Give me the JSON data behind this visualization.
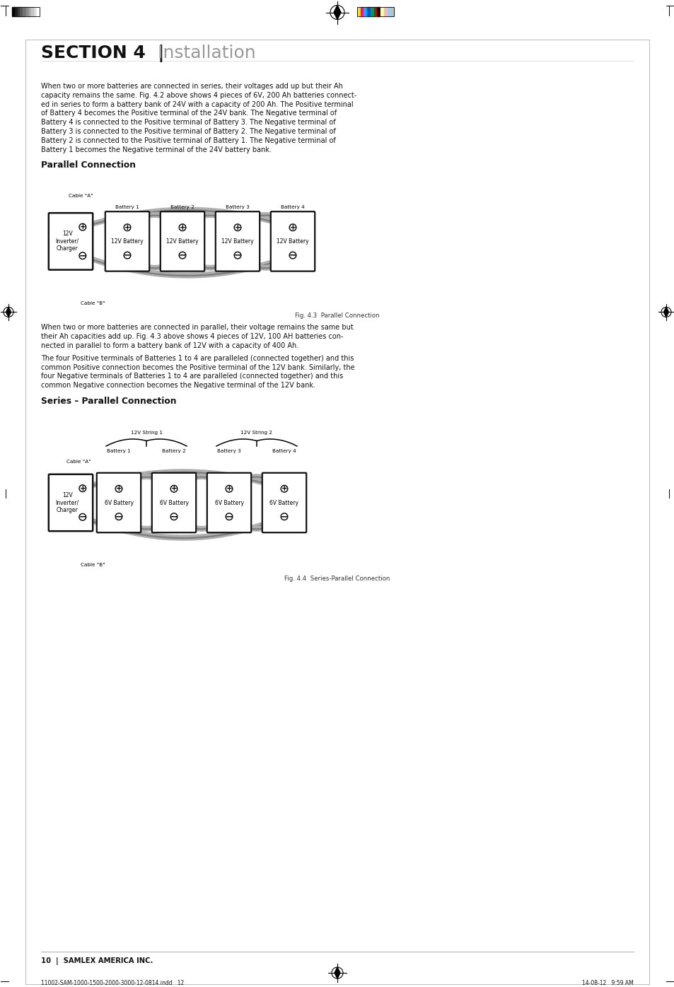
{
  "bg_color": "#ffffff",
  "page_width": 9.54,
  "page_height": 13.96,
  "header_bar_colors_gray": [
    "#000000",
    "#1c1c1c",
    "#383838",
    "#555555",
    "#717171",
    "#8d8d8d",
    "#aaaaaa",
    "#c6c6c6",
    "#e2e2e2",
    "#ffffff"
  ],
  "header_bar_colors_cmyk": [
    "#ffe000",
    "#ff00c8",
    "#00b4ff",
    "#0050c8",
    "#00a040",
    "#e00000",
    "#000000",
    "#ffffa0",
    "#ffb0d8",
    "#80d8ff",
    "#c0c0c0"
  ],
  "section_title_bold": "SECTION 4  |",
  "section_title_light": " Installation",
  "body_text_1": "When two or more batteries are connected in series, their voltages add up but their Ah\ncapacity remains the same. Fig. 4.2 above shows 4 pieces of 6V, 200 Ah batteries connect-\ned in series to form a battery bank of 24V with a capacity of 200 Ah. The Positive terminal\nof Battery 4 becomes the Positive terminal of the 24V bank. The Negative terminal of\nBattery 4 is connected to the Positive terminal of Battery 3. The Negative terminal of\nBattery 3 is connected to the Positive terminal of Battery 2. The Negative terminal of\nBattery 2 is connected to the Positive terminal of Battery 1. The Negative terminal of\nBattery 1 becomes the Negative terminal of the 24V battery bank.",
  "parallel_heading": "Parallel Connection",
  "fig43_caption": "Fig. 4.3  Parallel Connection",
  "body_text_2": "When two or more batteries are connected in parallel, their voltage remains the same but\ntheir Ah capacities add up. Fig. 4.3 above shows 4 pieces of 12V, 100 AH batteries con-\nnected in parallel to form a battery bank of 12V with a capacity of 400 Ah.",
  "body_text_3": "The four Positive terminals of Batteries 1 to 4 are paralleled (connected together) and this\ncommon Positive connection becomes the Positive terminal of the 12V bank. Similarly, the\nfour Negative terminals of Batteries 1 to 4 are paralleled (connected together) and this\ncommon Negative connection becomes the Negative terminal of the 12V bank.",
  "series_parallel_heading": "Series – Parallel Connection",
  "fig44_caption": "Fig. 4.4  Series-Parallel Connection",
  "footer_text": "10  |  SAMLEX AMERICA INC.",
  "footer_file": "11002-SAM-1000-1500-2000-3000-12-0814.indd   12",
  "footer_date": "14-08-12   9:59 AM"
}
